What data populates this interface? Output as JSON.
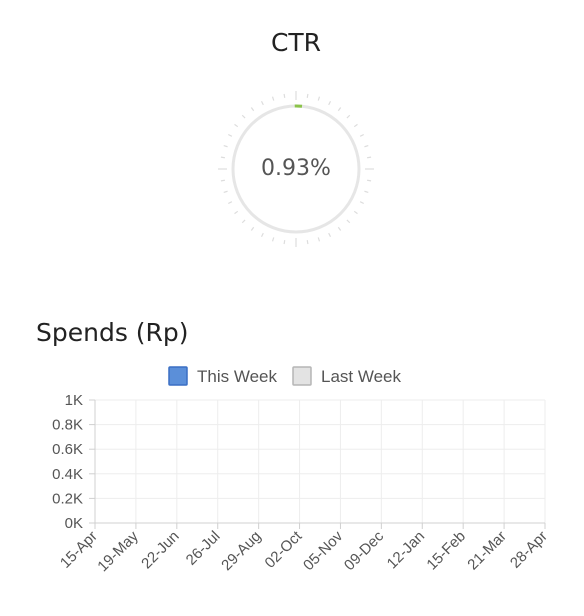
{
  "ctr_gauge": {
    "title": "CTR",
    "value_label": "0.93%",
    "value_percent": 0.93,
    "accent_color": "#8bc34a",
    "track_color": "#e6e6e6"
  },
  "spends": {
    "title": "Spends (Rp)"
  },
  "chart_data": {
    "type": "bar",
    "categories": [
      "15-Apr",
      "19-May",
      "22-Jun",
      "26-Jul",
      "29-Aug",
      "02-Oct",
      "05-Nov",
      "09-Dec",
      "12-Jan",
      "15-Feb",
      "21-Mar",
      "28-Apr"
    ],
    "series": [
      {
        "name": "This Week",
        "values": [
          0,
          0,
          0,
          0,
          0,
          0,
          0,
          0,
          0,
          0,
          0,
          0
        ],
        "color": "#5b8fd9",
        "border": "#3a6fc4"
      },
      {
        "name": "Last Week",
        "values": [
          0,
          0,
          0,
          0,
          0,
          0,
          0,
          0,
          0,
          0,
          0,
          0
        ],
        "color": "#e3e3e3",
        "border": "#b5b5b5"
      }
    ],
    "y_ticks": [
      "0K",
      "0.2K",
      "0.4K",
      "0.6K",
      "0.8K",
      "1K"
    ],
    "ylim": [
      0,
      1000
    ],
    "grid": true,
    "legend_position": "top"
  }
}
